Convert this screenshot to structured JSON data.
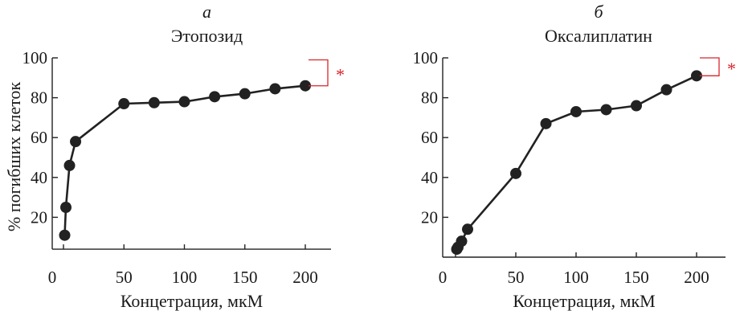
{
  "figure": {
    "ylabel": "% погибших клеток"
  },
  "chart_data": [
    {
      "type": "line",
      "panel_label": "а",
      "title": "Этопозид",
      "xlabel": "Концетрация, мкМ",
      "ylabel": "% погибших клеток",
      "xlim": [
        0,
        230
      ],
      "ylim": [
        4,
        100
      ],
      "xticks": [
        0,
        50,
        100,
        150,
        200
      ],
      "yticks": [
        20,
        40,
        60,
        80,
        100
      ],
      "grid": false,
      "series": [
        {
          "x": [
            1,
            2,
            5,
            10,
            50,
            75,
            100,
            125,
            150,
            175,
            200
          ],
          "y": [
            11,
            25,
            46,
            58,
            77,
            77.5,
            78,
            80.5,
            82,
            84.5,
            86
          ]
        }
      ],
      "annotation": "*",
      "bracket_y": [
        86,
        99
      ],
      "line_color": "#222222",
      "marker_color": "#222222",
      "annotation_color": "#d8262c"
    },
    {
      "type": "line",
      "panel_label": "б",
      "title": "Оксалиплатин",
      "xlabel": "Концетрация, мкМ",
      "ylabel": "",
      "xlim": [
        0,
        230
      ],
      "ylim": [
        0,
        100
      ],
      "xticks": [
        0,
        50,
        100,
        150,
        200
      ],
      "yticks": [
        20,
        40,
        60,
        80,
        100
      ],
      "grid": false,
      "series": [
        {
          "x": [
            1,
            2,
            5,
            10,
            50,
            75,
            100,
            125,
            150,
            175,
            200
          ],
          "y": [
            4,
            5,
            8,
            14,
            42,
            67,
            73,
            74,
            76,
            84,
            91
          ]
        }
      ],
      "annotation": "*",
      "bracket_y": [
        91,
        100
      ],
      "line_color": "#222222",
      "marker_color": "#222222",
      "annotation_color": "#d8262c"
    }
  ]
}
